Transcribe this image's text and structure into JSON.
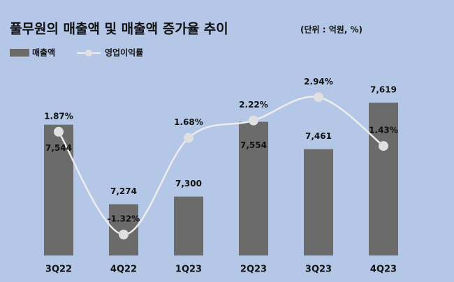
{
  "chart_data": {
    "type": "bar-line",
    "title": "풀무원의 매출액 및 매출액 증가율 추이",
    "subtitle": "(단위 : 억원, %)",
    "categories": [
      "3Q22",
      "4Q22",
      "1Q23",
      "2Q23",
      "3Q23",
      "4Q23"
    ],
    "series": [
      {
        "name": "매출액",
        "type": "bar",
        "color": "#6b6b6b",
        "values": [
          7544,
          7274,
          7300,
          7554,
          7461,
          7619
        ],
        "value_labels": [
          "7,544",
          "7,274",
          "7,300",
          "7,554",
          "7,461",
          "7,619"
        ]
      },
      {
        "name": "영업이익률",
        "type": "line",
        "axis": "y2",
        "color": "#ededed",
        "values": [
          1.87,
          -1.32,
          1.68,
          2.22,
          2.94,
          1.43
        ],
        "value_labels": [
          "1.87%",
          "-1.32%",
          "1.68%",
          "2.22%",
          "2.94%",
          "1.43%"
        ]
      }
    ],
    "ylim": [
      7100,
      7740
    ],
    "y2lim": [
      -1.97,
      3.88
    ]
  }
}
